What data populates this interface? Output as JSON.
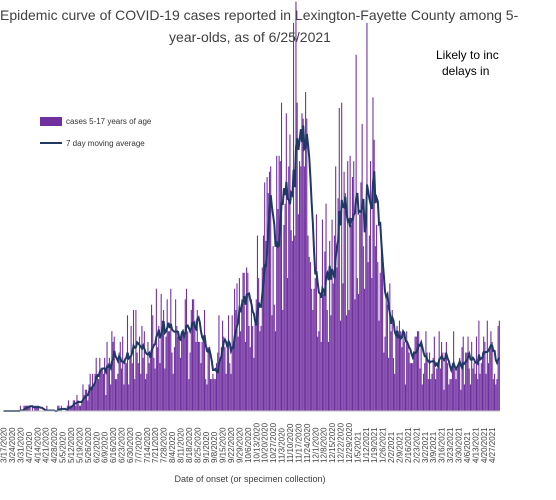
{
  "chart_data": {
    "type": "bar",
    "title_line1": "Epidemic curve of COVID-19 cases reported in Lexington-Fayette County among 5-",
    "title_line2": "year-olds, as of 6/25/2021",
    "note_line1": "Likely to inc",
    "note_line2": "delays in",
    "xlabel": "Date of onset (or specimen collection)",
    "ylabel": "",
    "grid": false,
    "legend_position": "top-left",
    "tick_labels": [
      "3/17/2020",
      "3/24/2020",
      "3/31/2020",
      "4/7/2020",
      "4/14/2020",
      "4/21/2020",
      "4/28/2020",
      "5/5/2020",
      "5/12/2020",
      "5/19/2020",
      "5/26/2020",
      "6/2/2020",
      "6/9/2020",
      "6/16/2020",
      "6/23/2020",
      "6/30/2020",
      "7/7/2020",
      "7/14/2020",
      "7/21/2020",
      "7/28/2020",
      "8/4/2020",
      "8/11/2020",
      "8/18/2020",
      "8/25/2020",
      "9/1/2020",
      "9/8/2020",
      "9/15/2020",
      "9/22/2020",
      "9/29/2020",
      "10/6/2020",
      "10/13/2020",
      "10/20/2020",
      "10/27/2020",
      "11/3/2020",
      "11/10/2020",
      "11/17/2020",
      "11/24/2020",
      "12/1/2020",
      "12/8/2020",
      "12/15/2020",
      "12/22/2020",
      "12/29/2020",
      "1/5/2021",
      "1/12/2021",
      "1/19/2021",
      "1/26/2021",
      "2/2/2021",
      "2/9/2021",
      "2/16/2021",
      "2/23/2021",
      "3/2/2021",
      "3/9/2021",
      "3/16/2021",
      "3/23/2021",
      "3/30/2021",
      "4/6/2021",
      "4/13/2021",
      "4/20/2021",
      "4/27/2021"
    ],
    "weekly_level": [
      0.3,
      0.2,
      0.4,
      0.6,
      0.4,
      0.3,
      0.3,
      0.4,
      1.2,
      2.4,
      4,
      6,
      7,
      9,
      10,
      11,
      11,
      12,
      15,
      17,
      16,
      15,
      13,
      12,
      12,
      12,
      13,
      14,
      16,
      19,
      21,
      25,
      28,
      34,
      40,
      47,
      36,
      32,
      26,
      30,
      34,
      36,
      40,
      44,
      38,
      22,
      14,
      12,
      10,
      9,
      9,
      9,
      9,
      9,
      9,
      9,
      10,
      10,
      10
    ],
    "series": [
      {
        "name": "cases 5-17 years of age",
        "color": "#7030a0",
        "values": []
      },
      {
        "name": "7 day moving average",
        "color": "#1f3864",
        "values": []
      }
    ],
    "ylim": [
      0,
      60
    ]
  }
}
